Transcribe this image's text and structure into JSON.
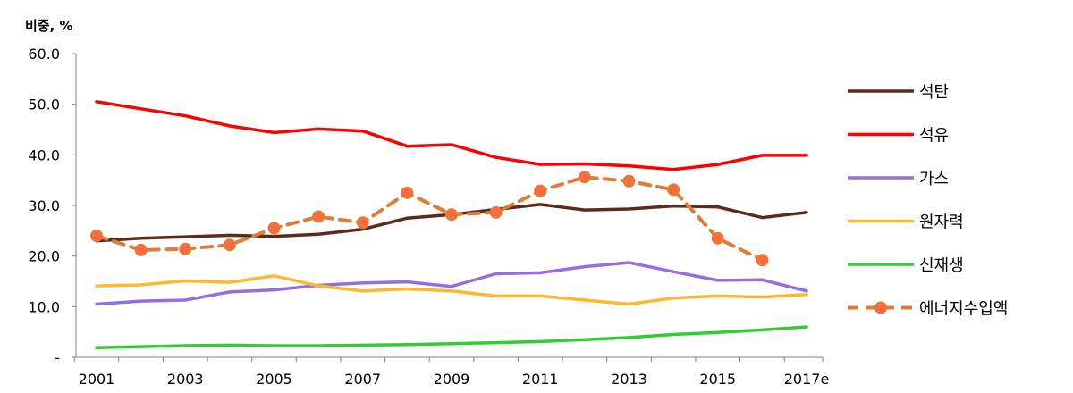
{
  "chart_data": {
    "type": "line",
    "ylabel": "비중, %",
    "ylim": [
      0,
      60
    ],
    "y_ticks": [
      "-",
      "10.0",
      "20.0",
      "30.0",
      "40.0",
      "50.0",
      "60.0"
    ],
    "categories": [
      "2001",
      "2002",
      "2003",
      "2004",
      "2005",
      "2006",
      "2007",
      "2008",
      "2009",
      "2010",
      "2011",
      "2012",
      "2013",
      "2014",
      "2015",
      "2016",
      "2017e"
    ],
    "x_tick_labels": [
      "2001",
      "",
      "2003",
      "",
      "2005",
      "",
      "2007",
      "",
      "2009",
      "",
      "2011",
      "",
      "2013",
      "",
      "2015",
      "",
      "2017e"
    ],
    "grid": false,
    "legend_position": "right",
    "series": [
      {
        "name": "석탄",
        "color": "#5b2c1e",
        "style": "solid",
        "values": [
          23.0,
          23.5,
          23.8,
          24.1,
          23.9,
          24.3,
          25.3,
          27.5,
          28.2,
          29.2,
          30.2,
          29.1,
          29.3,
          29.9,
          29.7,
          27.6,
          28.6
        ]
      },
      {
        "name": "석유",
        "color": "#ff0000",
        "style": "solid",
        "values": [
          50.5,
          49.1,
          47.7,
          45.7,
          44.4,
          45.1,
          44.7,
          41.7,
          42.0,
          39.5,
          38.1,
          38.2,
          37.8,
          37.1,
          38.1,
          39.9,
          39.9
        ]
      },
      {
        "name": "가스",
        "color": "#9370db",
        "style": "solid",
        "values": [
          10.5,
          11.1,
          11.3,
          12.9,
          13.3,
          14.2,
          14.7,
          14.9,
          14.0,
          16.5,
          16.7,
          17.9,
          18.7,
          16.9,
          15.2,
          15.3,
          13.1
        ]
      },
      {
        "name": "원자력",
        "color": "#ffb732",
        "style": "solid",
        "values": [
          14.1,
          14.3,
          15.1,
          14.8,
          16.1,
          14.1,
          13.1,
          13.5,
          13.1,
          12.1,
          12.1,
          11.3,
          10.5,
          11.7,
          12.1,
          11.9,
          12.4
        ]
      },
      {
        "name": "신재생",
        "color": "#33cc33",
        "style": "solid",
        "values": [
          1.9,
          2.1,
          2.3,
          2.4,
          2.3,
          2.3,
          2.4,
          2.5,
          2.7,
          2.9,
          3.1,
          3.5,
          3.9,
          4.5,
          4.9,
          5.4,
          6.0
        ]
      },
      {
        "name": "에너지수입액",
        "color": "#e07b39",
        "style": "dashed",
        "marker": "circle",
        "marker_fill": "#ff6a3d",
        "values": [
          24.0,
          21.2,
          21.4,
          22.2,
          25.5,
          27.8,
          26.6,
          32.5,
          28.2,
          28.6,
          32.9,
          35.6,
          34.8,
          33.1,
          23.5,
          19.2,
          null
        ]
      }
    ]
  }
}
